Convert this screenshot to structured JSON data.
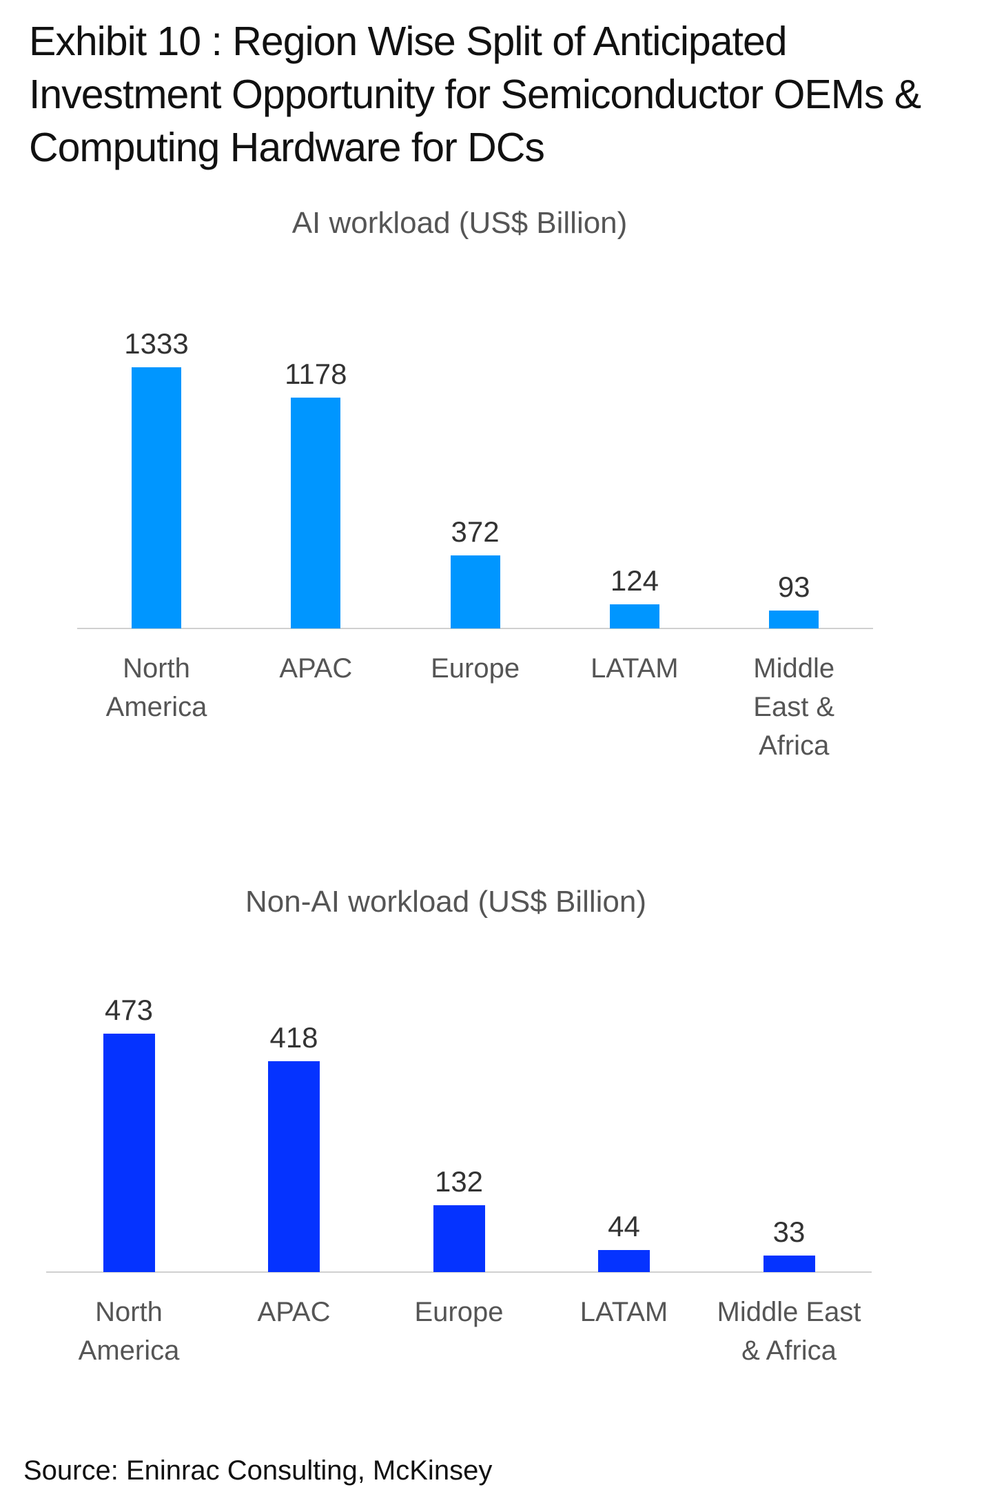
{
  "title": "Exhibit 10 : Region Wise Split of Anticipated Investment Opportunity for Semiconductor OEMs & Computing Hardware for DCs",
  "source": "Source: Eninrac Consulting, McKinsey",
  "chart_data": [
    {
      "type": "bar",
      "title": "AI workload (US$ Billion)",
      "categories": [
        "North America",
        "APAC",
        "Europe",
        "LATAM",
        "Middle East & Africa"
      ],
      "values": [
        1333,
        1178,
        372,
        124,
        93
      ],
      "color": "#0096ff"
    },
    {
      "type": "bar",
      "title": "Non-AI workload (US$ Billion)",
      "categories": [
        "North America",
        "APAC",
        "Europe",
        "LATAM",
        "Middle East & Africa"
      ],
      "values": [
        473,
        418,
        132,
        44,
        33
      ],
      "color": "#0533ff"
    }
  ]
}
